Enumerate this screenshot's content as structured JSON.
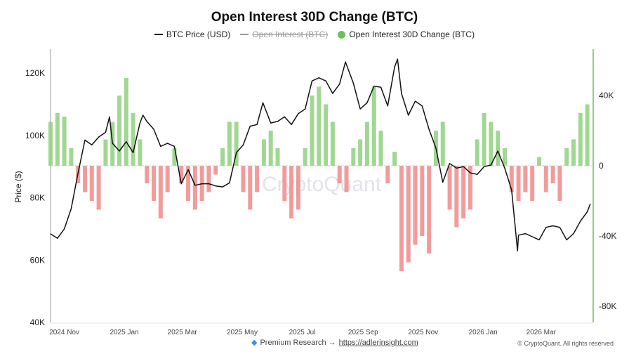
{
  "chart_data": {
    "type": "bar+line",
    "title": "Open Interest 30D Change (BTC)",
    "legend": {
      "placement": "top-center",
      "items": [
        {
          "label": "BTC Price (USD)",
          "color": "#111111",
          "visible": true
        },
        {
          "label": "Open Interest (BTC)",
          "color": "#999999",
          "visible": false
        },
        {
          "label": "Open Interest 30D Change (BTC)",
          "color": "#6cc05c",
          "visible": true
        }
      ]
    },
    "ylabel": "Price ($)",
    "y_ticks": [
      "120K",
      "100K",
      "80K",
      "60K",
      "40K"
    ],
    "y_tick_values": [
      120000,
      100000,
      80000,
      60000,
      40000
    ],
    "ylim": [
      40000,
      127700
    ],
    "y2_ticks": [
      "40K",
      "0",
      "-40K",
      "-80K"
    ],
    "y2_tick_values": [
      40000,
      0,
      -40000,
      -80000
    ],
    "y2lim": [
      -89200,
      66400
    ],
    "xlim": [
      "2024-10-18",
      "2026-04-23"
    ],
    "x_ticks": [
      {
        "label": "2024 Nov",
        "date": "2024-11-01"
      },
      {
        "label": "2025 Jan",
        "date": "2025-01-01"
      },
      {
        "label": "2025 Mar",
        "date": "2025-03-01"
      },
      {
        "label": "2025 May",
        "date": "2025-05-01"
      },
      {
        "label": "2025 Jul",
        "date": "2025-07-01"
      },
      {
        "label": "2025 Sep",
        "date": "2025-09-01"
      },
      {
        "label": "2025 Nov",
        "date": "2025-11-01"
      },
      {
        "label": "2026 Jan",
        "date": "2026-01-01"
      },
      {
        "label": "2026 Mar",
        "date": "2026-03-01"
      }
    ],
    "grid": false,
    "colors": {
      "price": "#111111",
      "positive": "#8fd07f",
      "negative": "#f08a8a",
      "right_axis": "#8fd07f",
      "left_axis": "#999999"
    },
    "price_series": {
      "name": "BTC Price (USD)",
      "x": [
        "2024-10-18",
        "2024-10-25",
        "2024-11-01",
        "2024-11-08",
        "2024-11-15",
        "2024-11-22",
        "2024-11-29",
        "2024-12-06",
        "2024-12-13",
        "2024-12-17",
        "2024-12-20",
        "2024-12-27",
        "2025-01-03",
        "2025-01-10",
        "2025-01-17",
        "2025-01-20",
        "2025-01-24",
        "2025-01-31",
        "2025-02-07",
        "2025-02-14",
        "2025-02-21",
        "2025-02-28",
        "2025-03-07",
        "2025-03-14",
        "2025-03-21",
        "2025-03-28",
        "2025-04-04",
        "2025-04-11",
        "2025-04-18",
        "2025-04-25",
        "2025-05-02",
        "2025-05-09",
        "2025-05-16",
        "2025-05-22",
        "2025-05-30",
        "2025-06-06",
        "2025-06-13",
        "2025-06-20",
        "2025-06-27",
        "2025-07-04",
        "2025-07-11",
        "2025-07-18",
        "2025-07-25",
        "2025-08-01",
        "2025-08-08",
        "2025-08-14",
        "2025-08-22",
        "2025-08-29",
        "2025-09-05",
        "2025-09-12",
        "2025-09-19",
        "2025-09-26",
        "2025-10-03",
        "2025-10-06",
        "2025-10-10",
        "2025-10-17",
        "2025-10-24",
        "2025-10-31",
        "2025-11-07",
        "2025-11-14",
        "2025-11-21",
        "2025-11-28",
        "2025-12-05",
        "2025-12-12",
        "2025-12-19",
        "2025-12-26",
        "2026-01-02",
        "2026-01-09",
        "2026-01-16",
        "2026-01-23",
        "2026-01-30",
        "2026-02-05",
        "2026-02-06",
        "2026-02-13",
        "2026-02-20",
        "2026-02-27",
        "2026-03-06",
        "2026-03-13",
        "2026-03-20",
        "2026-03-27",
        "2026-04-03",
        "2026-04-10",
        "2026-04-17",
        "2026-04-20"
      ],
      "y": [
        68400,
        67000,
        70000,
        76500,
        88000,
        98500,
        97000,
        99500,
        101000,
        106000,
        97500,
        95000,
        98000,
        94500,
        104000,
        106500,
        104500,
        102000,
        96500,
        97500,
        96500,
        84500,
        89000,
        84000,
        84500,
        84500,
        83800,
        83500,
        84800,
        94500,
        97000,
        103000,
        103500,
        110500,
        104000,
        104500,
        106000,
        103500,
        107000,
        108500,
        117500,
        118500,
        117500,
        113500,
        116500,
        123600,
        116800,
        108500,
        110500,
        115800,
        115500,
        109500,
        122000,
        124500,
        113500,
        106500,
        111000,
        109500,
        102000,
        96000,
        85000,
        91000,
        89500,
        90000,
        88000,
        87500,
        90000,
        90500,
        95000,
        89500,
        82500,
        63000,
        68000,
        68500,
        67500,
        66500,
        70500,
        71000,
        70500,
        66500,
        68500,
        72500,
        75500,
        78000
      ]
    },
    "oi_change_series": {
      "name": "Open Interest 30D Change (BTC)",
      "x": [
        "2024-10-18",
        "2024-10-25",
        "2024-11-01",
        "2024-11-08",
        "2024-11-15",
        "2024-11-22",
        "2024-11-29",
        "2024-12-06",
        "2024-12-13",
        "2024-12-20",
        "2024-12-27",
        "2025-01-03",
        "2025-01-10",
        "2025-01-17",
        "2025-01-24",
        "2025-01-31",
        "2025-02-07",
        "2025-02-14",
        "2025-02-21",
        "2025-02-28",
        "2025-03-07",
        "2025-03-14",
        "2025-03-21",
        "2025-03-28",
        "2025-04-04",
        "2025-04-11",
        "2025-04-18",
        "2025-04-25",
        "2025-05-02",
        "2025-05-09",
        "2025-05-16",
        "2025-05-23",
        "2025-05-30",
        "2025-06-06",
        "2025-06-13",
        "2025-06-20",
        "2025-06-27",
        "2025-07-04",
        "2025-07-11",
        "2025-07-18",
        "2025-07-25",
        "2025-08-01",
        "2025-08-08",
        "2025-08-15",
        "2025-08-22",
        "2025-08-29",
        "2025-09-05",
        "2025-09-12",
        "2025-09-19",
        "2025-09-26",
        "2025-10-03",
        "2025-10-10",
        "2025-10-17",
        "2025-10-24",
        "2025-10-31",
        "2025-11-07",
        "2025-11-14",
        "2025-11-21",
        "2025-11-28",
        "2025-12-05",
        "2025-12-12",
        "2025-12-19",
        "2025-12-26",
        "2026-01-02",
        "2026-01-09",
        "2026-01-16",
        "2026-01-23",
        "2026-01-30",
        "2026-02-06",
        "2026-02-13",
        "2026-02-20",
        "2026-02-27",
        "2026-03-06",
        "2026-03-13",
        "2026-03-20",
        "2026-03-27",
        "2026-04-03",
        "2026-04-10",
        "2026-04-17"
      ],
      "y": [
        25000,
        30000,
        28000,
        10000,
        -10000,
        -15000,
        -20000,
        -25000,
        15000,
        25000,
        40000,
        50000,
        30000,
        15000,
        -10000,
        -20000,
        -30000,
        -15000,
        10000,
        -10000,
        -20000,
        -25000,
        -20000,
        -15000,
        -5000,
        10000,
        25000,
        25000,
        -15000,
        -25000,
        -15000,
        15000,
        20000,
        10000,
        -20000,
        -30000,
        -25000,
        10000,
        40000,
        45000,
        35000,
        25000,
        -10000,
        -15000,
        10000,
        15000,
        25000,
        45000,
        20000,
        -10000,
        8000,
        -60000,
        -55000,
        -45000,
        -40000,
        -50000,
        20000,
        25000,
        -25000,
        -35000,
        -30000,
        -25000,
        15000,
        30000,
        25000,
        20000,
        10000,
        -15000,
        -20000,
        -15000,
        -20000,
        5000,
        -15000,
        -10000,
        -20000,
        10000,
        15000,
        30000,
        35000
      ]
    }
  },
  "watermark": "CryptoQuant",
  "footer": {
    "icon": "gem-icon",
    "promo_text": "Premium Research →",
    "link_text": "https://adlerinsight.com",
    "copyright": "© CryptoQuant. All rights reserved"
  }
}
